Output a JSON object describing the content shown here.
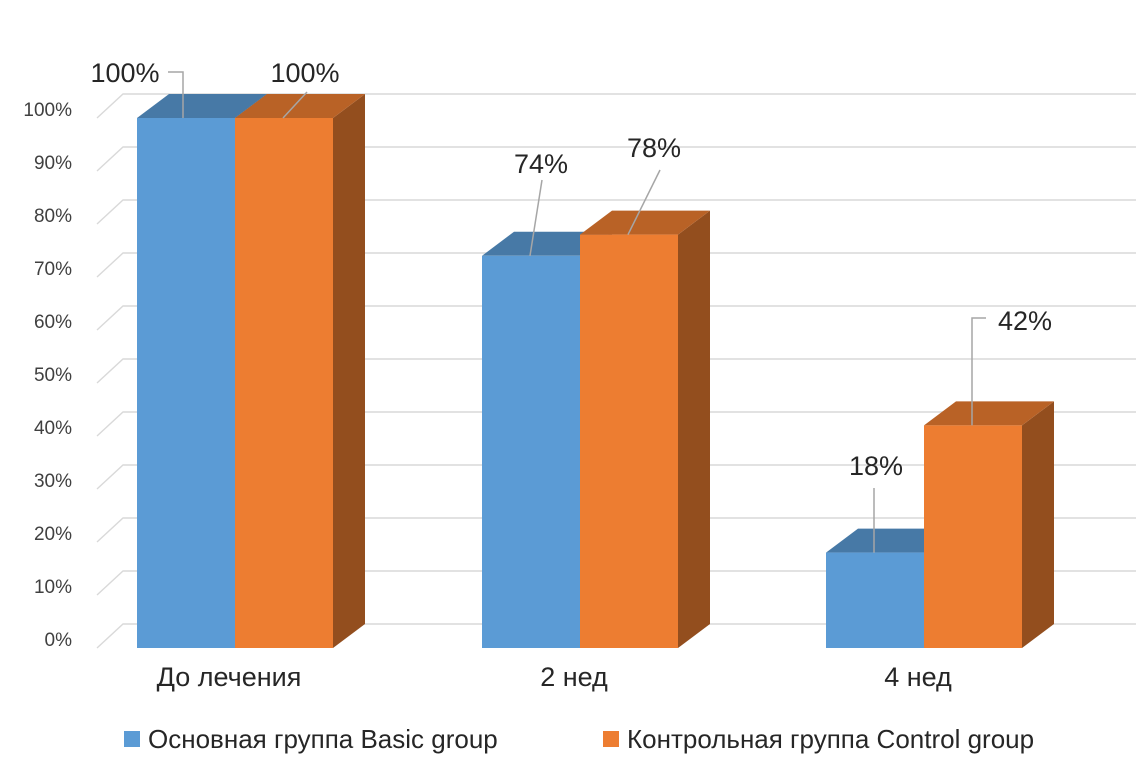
{
  "chart_data": {
    "type": "bar",
    "categories": [
      "До лечения",
      "2 нед",
      "4 нед"
    ],
    "series": [
      {
        "name": "Основная группа Basic group",
        "values": [
          100,
          74,
          18
        ],
        "labels": [
          "100%",
          "74%",
          "18%"
        ],
        "color": "#5b9bd5"
      },
      {
        "name": "Контрольная группа Control group",
        "values": [
          100,
          78,
          42
        ],
        "labels": [
          "100%",
          "78%",
          "42%"
        ],
        "color": "#ed7d31"
      }
    ],
    "yticks": [
      "0%",
      "10%",
      "20%",
      "30%",
      "40%",
      "50%",
      "60%",
      "70%",
      "80%",
      "90%",
      "100%"
    ],
    "ylim": [
      0,
      100
    ],
    "grid": true,
    "legend": "bottom",
    "style": "3d-column"
  }
}
